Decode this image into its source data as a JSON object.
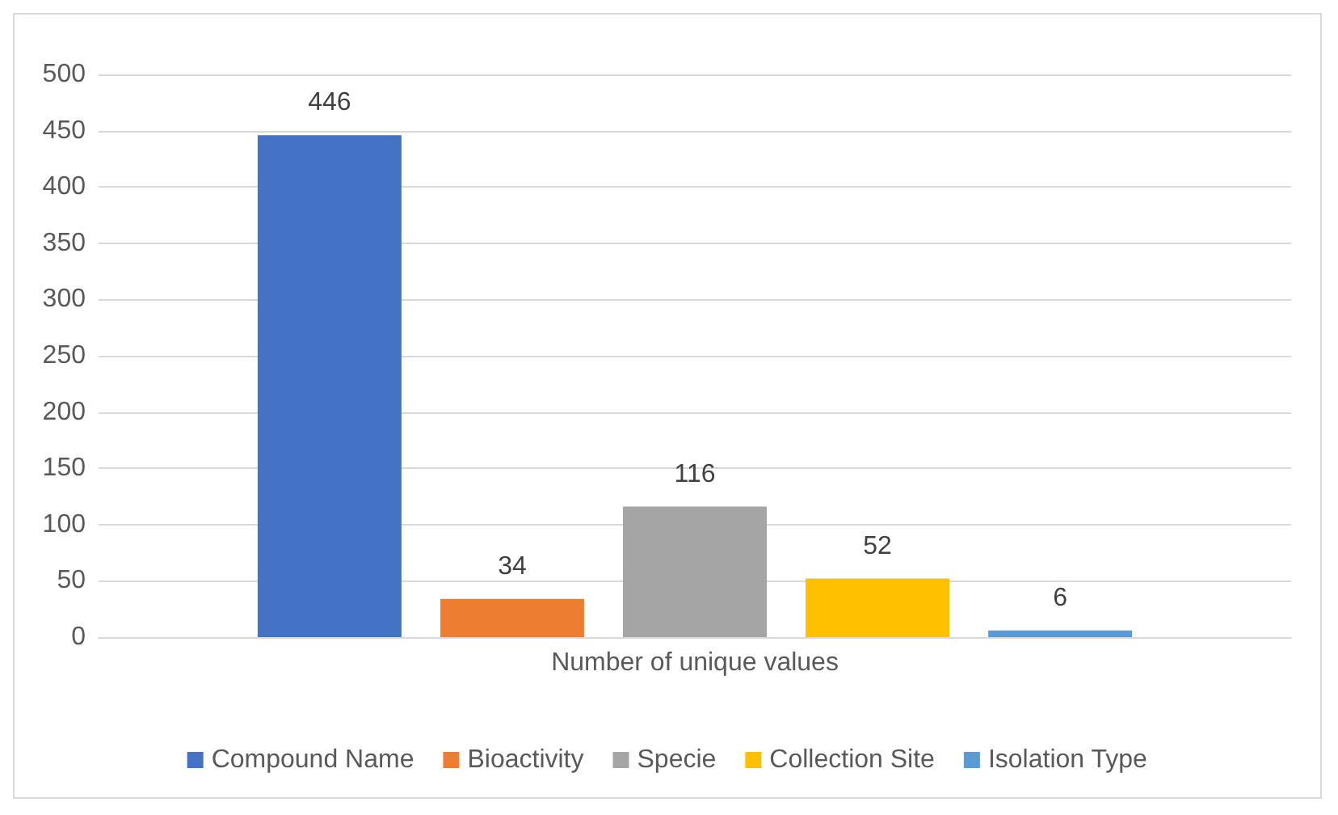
{
  "chart_data": {
    "type": "bar",
    "categories": [
      "Number of unique values"
    ],
    "series": [
      {
        "name": "Compound Name",
        "color": "#4472c4",
        "values": [
          446
        ]
      },
      {
        "name": "Bioactivity",
        "color": "#ed7d31",
        "values": [
          34
        ]
      },
      {
        "name": "Specie",
        "color": "#a5a5a5",
        "values": [
          116
        ]
      },
      {
        "name": "Collection Site",
        "color": "#ffc000",
        "values": [
          52
        ]
      },
      {
        "name": "Isolation Type",
        "color": "#5b9bd5",
        "values": [
          6
        ]
      }
    ],
    "ylim": [
      0,
      500
    ],
    "yticks": [
      0,
      50,
      100,
      150,
      200,
      250,
      300,
      350,
      400,
      450,
      500
    ],
    "grid": "y",
    "legend": "bottom",
    "data_labels": true
  }
}
